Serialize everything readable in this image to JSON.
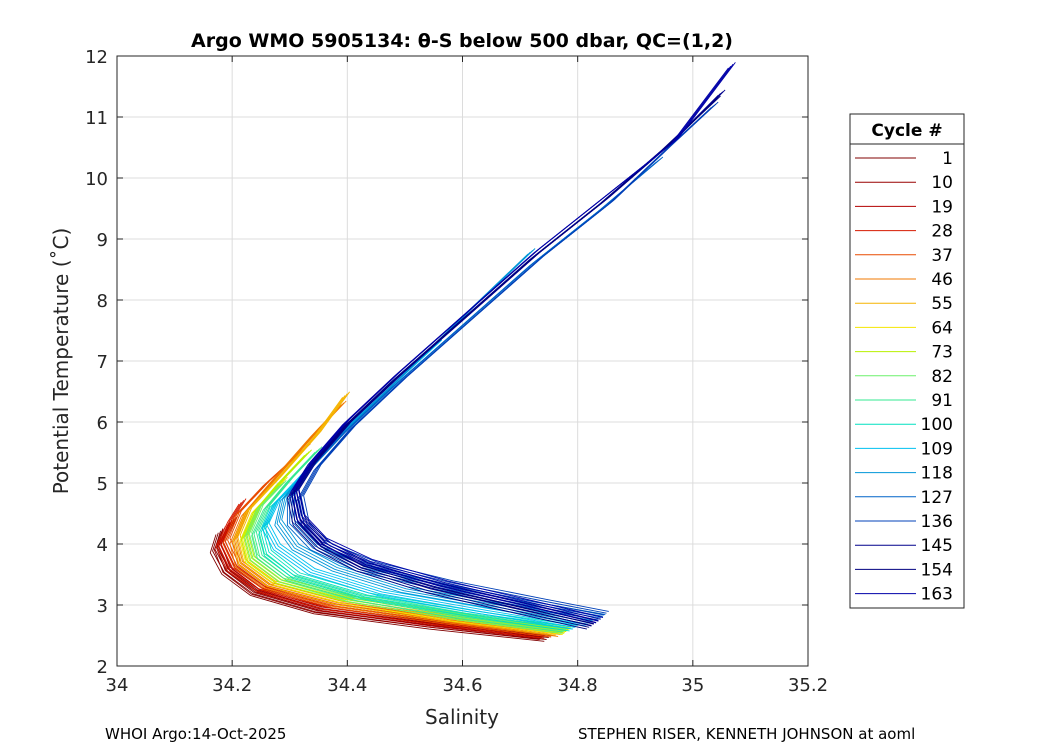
{
  "chart_data": {
    "type": "line",
    "title": "Argo WMO 5905134: θ-S below 500 dbar,  QC=(1,2)",
    "xlabel": "Salinity",
    "ylabel": "Potential Temperature (˚C)",
    "xlim": [
      34,
      35.2
    ],
    "ylim": [
      2,
      12
    ],
    "xticks": [
      "34",
      "34.2",
      "34.4",
      "34.6",
      "34.8",
      "35",
      "35.2"
    ],
    "yticks": [
      "2",
      "3",
      "4",
      "5",
      "6",
      "7",
      "8",
      "9",
      "10",
      "11",
      "12"
    ],
    "grid": true,
    "legend": {
      "title": "Cycle #",
      "placement": "outside-right",
      "entries": [
        {
          "label": "1",
          "color": "#800000"
        },
        {
          "label": "10",
          "color": "#990000"
        },
        {
          "label": "19",
          "color": "#b30000"
        },
        {
          "label": "28",
          "color": "#d61a00"
        },
        {
          "label": "37",
          "color": "#e84a00"
        },
        {
          "label": "46",
          "color": "#f07800"
        },
        {
          "label": "55",
          "color": "#f5b400"
        },
        {
          "label": "64",
          "color": "#f5e600"
        },
        {
          "label": "73",
          "color": "#b8f000"
        },
        {
          "label": "82",
          "color": "#6cf06c"
        },
        {
          "label": "91",
          "color": "#33e890"
        },
        {
          "label": "100",
          "color": "#00e0c0"
        },
        {
          "label": "109",
          "color": "#00c0f0"
        },
        {
          "label": "118",
          "color": "#0096d8"
        },
        {
          "label": "127",
          "color": "#0064c8"
        },
        {
          "label": "136",
          "color": "#0040b8"
        },
        {
          "label": "145",
          "color": "#00008b"
        },
        {
          "label": "154",
          "color": "#000080"
        },
        {
          "label": "163",
          "color": "#0000a8"
        }
      ]
    },
    "series": [
      {
        "color": "#800000",
        "x": [
          34.75,
          34.55,
          34.35,
          34.24,
          34.19,
          34.17,
          34.18
        ],
        "y": [
          2.45,
          2.65,
          2.9,
          3.2,
          3.55,
          3.9,
          4.2
        ]
      },
      {
        "color": "#990000",
        "x": [
          34.74,
          34.55,
          34.35,
          34.24,
          34.19,
          34.175,
          34.19
        ],
        "y": [
          2.48,
          2.68,
          2.92,
          3.22,
          3.58,
          3.95,
          4.3
        ]
      },
      {
        "color": "#b30000",
        "x": [
          34.74,
          34.55,
          34.36,
          34.25,
          34.2,
          34.18,
          34.2
        ],
        "y": [
          2.5,
          2.7,
          2.95,
          3.25,
          3.6,
          4.0,
          4.4
        ]
      },
      {
        "color": "#d61a00",
        "x": [
          34.75,
          34.56,
          34.37,
          34.25,
          34.2,
          34.18,
          34.2,
          34.22
        ],
        "y": [
          2.5,
          2.72,
          2.97,
          3.27,
          3.6,
          4.0,
          4.4,
          4.7
        ]
      },
      {
        "color": "#e84a00",
        "x": [
          34.76,
          34.57,
          34.38,
          34.26,
          34.21,
          34.19,
          34.21,
          34.26,
          34.33
        ],
        "y": [
          2.52,
          2.74,
          3.0,
          3.3,
          3.65,
          4.05,
          4.5,
          5.0,
          5.6
        ]
      },
      {
        "color": "#f07800",
        "x": [
          34.77,
          34.58,
          34.38,
          34.26,
          34.21,
          34.2,
          34.22,
          34.27,
          34.34,
          34.39
        ],
        "y": [
          2.53,
          2.75,
          3.02,
          3.32,
          3.67,
          4.05,
          4.5,
          5.05,
          5.8,
          6.3
        ]
      },
      {
        "color": "#f5b400",
        "x": [
          34.77,
          34.58,
          34.39,
          34.27,
          34.22,
          34.21,
          34.23,
          34.28,
          34.35,
          34.4
        ],
        "y": [
          2.55,
          2.78,
          3.05,
          3.35,
          3.7,
          4.1,
          4.55,
          5.05,
          5.8,
          6.45
        ]
      },
      {
        "color": "#f5e600",
        "x": [
          34.78,
          34.59,
          34.4,
          34.28,
          34.23,
          34.22,
          34.24,
          34.29
        ],
        "y": [
          2.56,
          2.78,
          3.07,
          3.37,
          3.72,
          4.1,
          4.55,
          5.05
        ]
      },
      {
        "color": "#b8f000",
        "x": [
          34.78,
          34.6,
          34.4,
          34.28,
          34.23,
          34.22,
          34.24,
          34.28,
          34.33
        ],
        "y": [
          2.58,
          2.8,
          3.1,
          3.4,
          3.75,
          4.12,
          4.55,
          5.0,
          5.5
        ]
      },
      {
        "color": "#6cf06c",
        "x": [
          34.78,
          34.6,
          34.41,
          34.29,
          34.24,
          34.23,
          34.25,
          34.29
        ],
        "y": [
          2.58,
          2.8,
          3.1,
          3.42,
          3.78,
          4.15,
          4.6,
          5.0
        ]
      },
      {
        "color": "#33e890",
        "x": [
          34.78,
          34.6,
          34.42,
          34.3,
          34.25,
          34.24,
          34.26,
          34.3,
          34.35
        ],
        "y": [
          2.6,
          2.82,
          3.12,
          3.45,
          3.8,
          4.18,
          4.6,
          5.05,
          5.55
        ]
      },
      {
        "color": "#00e0c0",
        "x": [
          34.79,
          34.62,
          34.43,
          34.31,
          34.26,
          34.25,
          34.27,
          34.32,
          34.38
        ],
        "y": [
          2.62,
          2.85,
          3.15,
          3.48,
          3.85,
          4.2,
          4.65,
          5.1,
          5.7
        ]
      },
      {
        "color": "#00c0f0",
        "x": [
          34.8,
          34.64,
          34.46,
          34.34,
          34.28,
          34.26,
          34.28,
          34.33,
          34.4,
          34.48,
          34.56
        ],
        "y": [
          2.65,
          2.9,
          3.2,
          3.55,
          3.95,
          4.3,
          4.7,
          5.2,
          5.9,
          6.6,
          7.3
        ]
      },
      {
        "color": "#0096d8",
        "x": [
          34.82,
          34.68,
          34.5,
          34.38,
          34.31,
          34.28,
          34.29,
          34.33,
          34.4,
          34.5,
          34.62,
          34.72
        ],
        "y": [
          2.7,
          2.95,
          3.25,
          3.6,
          3.95,
          4.35,
          4.75,
          5.2,
          5.9,
          6.8,
          7.9,
          8.8
        ]
      },
      {
        "color": "#0064c8",
        "x": [
          34.84,
          34.72,
          34.56,
          34.42,
          34.34,
          34.3,
          34.3,
          34.33,
          34.39,
          34.48,
          34.6,
          34.72,
          34.84,
          34.94
        ],
        "y": [
          2.8,
          3.0,
          3.3,
          3.6,
          3.95,
          4.35,
          4.75,
          5.2,
          5.8,
          6.6,
          7.6,
          8.6,
          9.5,
          10.3
        ]
      },
      {
        "color": "#0040b8",
        "x": [
          34.85,
          34.74,
          34.58,
          34.45,
          34.37,
          34.33,
          34.32,
          34.35,
          34.41,
          34.5,
          34.62,
          34.74,
          34.86,
          34.96,
          35.04
        ],
        "y": [
          2.85,
          3.05,
          3.35,
          3.65,
          3.95,
          4.3,
          4.75,
          5.25,
          5.9,
          6.7,
          7.7,
          8.7,
          9.6,
          10.5,
          11.2
        ]
      },
      {
        "color": "#00008b",
        "x": [
          34.83,
          34.72,
          34.56,
          34.43,
          34.36,
          34.32,
          34.31,
          34.34,
          34.4,
          34.49,
          34.61,
          34.73,
          34.85,
          34.96,
          35.05
        ],
        "y": [
          2.7,
          2.95,
          3.3,
          3.65,
          4.0,
          4.4,
          4.85,
          5.3,
          5.95,
          6.75,
          7.75,
          8.75,
          9.65,
          10.55,
          11.4
        ]
      },
      {
        "color": "#000080",
        "x": [
          34.82,
          34.7,
          34.54,
          34.42,
          34.35,
          34.31,
          34.3,
          34.33,
          34.39,
          34.48,
          34.6,
          34.72,
          34.84,
          34.95,
          35.04
        ],
        "y": [
          2.65,
          2.9,
          3.25,
          3.6,
          3.95,
          4.35,
          4.8,
          5.25,
          5.9,
          6.7,
          7.7,
          8.7,
          9.6,
          10.5,
          11.3
        ]
      },
      {
        "color": "#0000a8",
        "x": [
          34.84,
          34.73,
          34.57,
          34.44,
          34.36,
          34.32,
          34.31,
          34.34,
          34.4,
          34.49,
          34.61,
          34.73,
          34.85,
          34.97,
          35.07
        ],
        "y": [
          2.75,
          3.0,
          3.35,
          3.7,
          4.05,
          4.45,
          4.9,
          5.35,
          6.0,
          6.8,
          7.8,
          8.8,
          9.7,
          10.6,
          11.85
        ]
      }
    ]
  },
  "footer": {
    "left": "WHOI Argo:14-Oct-2025",
    "right": "STEPHEN RISER, KENNETH JOHNSON at aoml"
  }
}
